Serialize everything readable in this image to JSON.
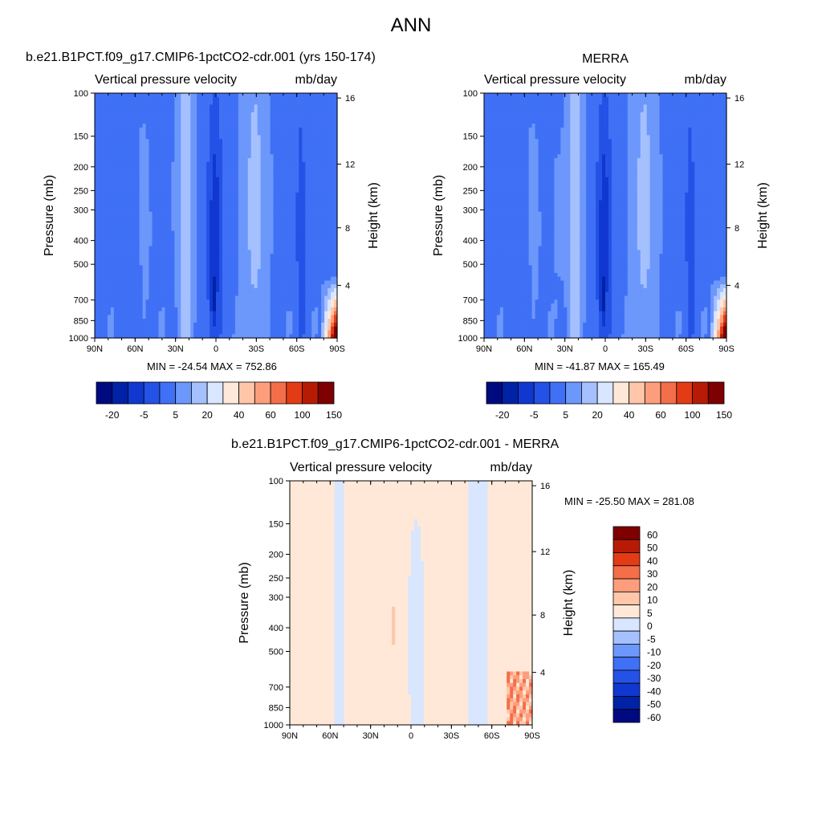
{
  "main_title": "ANN",
  "colors": {
    "abs_levels": [
      "#000A80",
      "#0022A6",
      "#1038D0",
      "#2451E6",
      "#3F70F5",
      "#6C97FB",
      "#A5C0FF",
      "#D8E6FF",
      "#FFE8D8",
      "#FFC6AA",
      "#FC9E7C",
      "#F46E49",
      "#E33B15",
      "#B81B05",
      "#7E0000"
    ],
    "diff_levels": [
      "#000A80",
      "#0022A6",
      "#1038D0",
      "#2451E6",
      "#3F70F5",
      "#6C97FB",
      "#A5C0FF",
      "#D8E6FF",
      "#FFE8D8",
      "#FFC6AA",
      "#FC9E7C",
      "#F46E49",
      "#E33B15",
      "#B81B05",
      "#7E0000"
    ]
  },
  "chart_data": [
    {
      "type": "heatmap",
      "title": "b.e21.B1PCT.f09_g17.CMIP6-1pctCO2-cdr.001 (yrs 150-174)",
      "subtitle_left": "Vertical pressure velocity",
      "subtitle_right": "mb/day",
      "ylabel": "Pressure (mb)",
      "y2label": "Height (km)",
      "x_ticks": [
        "90N",
        "60N",
        "30N",
        "0",
        "30S",
        "60S",
        "90S"
      ],
      "y_ticks": [
        "100",
        "150",
        "200",
        "250",
        "300",
        "400",
        "500",
        "700",
        "850",
        "1000"
      ],
      "y2_ticks": [
        "16",
        "12",
        "8",
        "4"
      ],
      "minmax": "MIN = -24.54  MAX = 752.86",
      "colorbar_labels": [
        "-20",
        "-5",
        "5",
        "20",
        "40",
        "60",
        "100",
        "150"
      ],
      "colorbar_orientation": "horizontal"
    },
    {
      "type": "heatmap",
      "title": "MERRA",
      "subtitle_left": "Vertical pressure velocity",
      "subtitle_right": "mb/day",
      "ylabel": "Pressure (mb)",
      "y2label": "Height (km)",
      "x_ticks": [
        "90N",
        "60N",
        "30N",
        "0",
        "30S",
        "60S",
        "90S"
      ],
      "y_ticks": [
        "100",
        "150",
        "200",
        "250",
        "300",
        "400",
        "500",
        "700",
        "850",
        "1000"
      ],
      "y2_ticks": [
        "16",
        "12",
        "8",
        "4"
      ],
      "minmax": "MIN = -41.87  MAX = 165.49",
      "colorbar_labels": [
        "-20",
        "-5",
        "5",
        "20",
        "40",
        "60",
        "100",
        "150"
      ],
      "colorbar_orientation": "horizontal"
    },
    {
      "type": "heatmap",
      "title": "b.e21.B1PCT.f09_g17.CMIP6-1pctCO2-cdr.001 - MERRA",
      "subtitle_left": "Vertical pressure velocity",
      "subtitle_right": "mb/day",
      "ylabel": "Pressure (mb)",
      "y2label": "Height (km)",
      "x_ticks": [
        "90N",
        "60N",
        "30N",
        "0",
        "30S",
        "60S",
        "90S"
      ],
      "y_ticks": [
        "100",
        "150",
        "200",
        "250",
        "300",
        "400",
        "500",
        "700",
        "850",
        "1000"
      ],
      "y2_ticks": [
        "16",
        "12",
        "8",
        "4"
      ],
      "minmax": "MIN = -25.50  MAX = 281.08",
      "colorbar_labels": [
        "60",
        "50",
        "40",
        "30",
        "20",
        "10",
        "5",
        "0",
        "-5",
        "-10",
        "-20",
        "-30",
        "-40",
        "-50",
        "-60"
      ],
      "colorbar_orientation": "vertical"
    }
  ]
}
